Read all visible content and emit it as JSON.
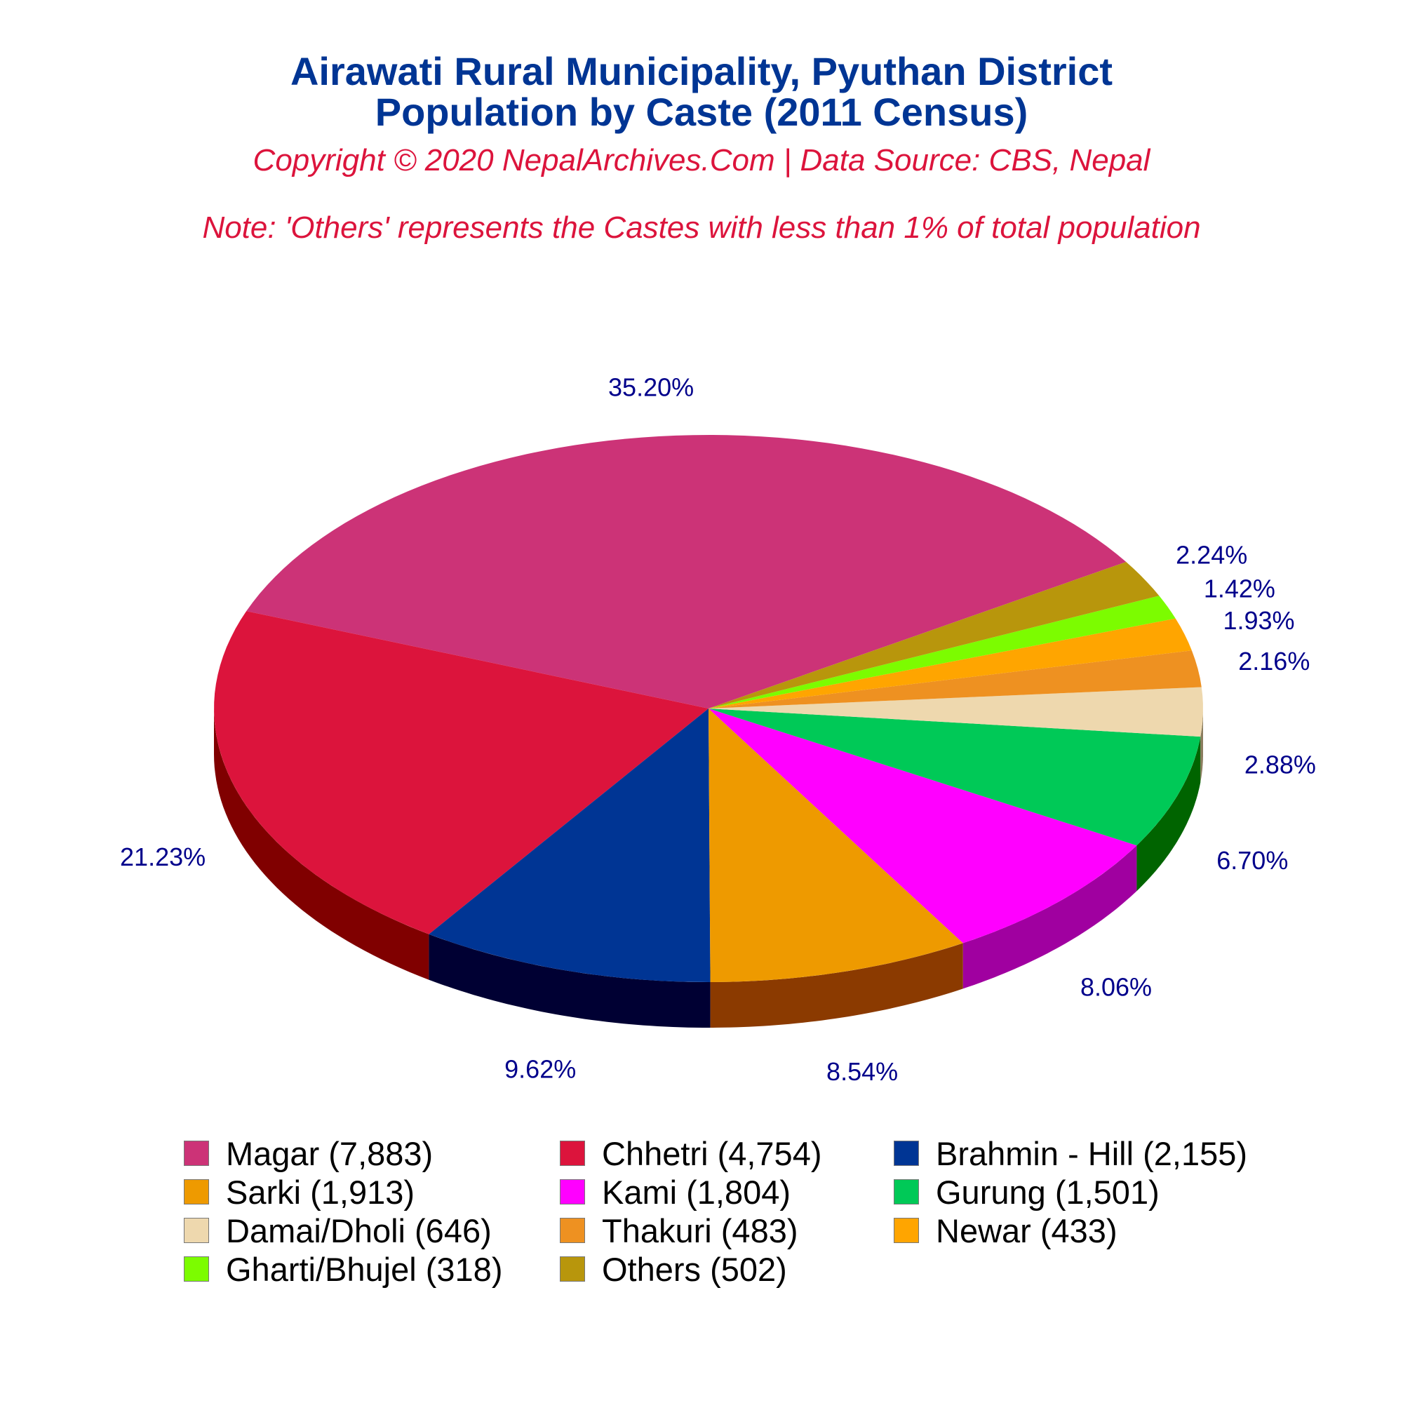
{
  "header": {
    "title_line1": "Airawati Rural Municipality, Pyuthan District",
    "title_line2": "Population by Caste (2011 Census)",
    "copyright": "Copyright © 2020 NepalArchives.Com | Data Source: CBS, Nepal",
    "note": "Note: 'Others' represents the Castes with less than 1% of total population"
  },
  "chart_data": {
    "type": "pie",
    "style": "3d",
    "categories": [
      "Magar",
      "Chhetri",
      "Brahmin - Hill",
      "Sarki",
      "Kami",
      "Gurung",
      "Damai/Dholi",
      "Thakuri",
      "Newar",
      "Gharti/Bhujel",
      "Others"
    ],
    "values": [
      7883,
      4754,
      2155,
      1913,
      1804,
      1501,
      646,
      483,
      433,
      318,
      502
    ],
    "percent_labels": [
      "35.20%",
      "21.23%",
      "9.62%",
      "8.54%",
      "8.06%",
      "6.70%",
      "2.88%",
      "2.16%",
      "1.93%",
      "1.42%",
      "2.24%"
    ],
    "legend_labels": [
      "Magar (7,883)",
      "Chhetri (4,754)",
      "Brahmin - Hill (2,155)",
      "Sarki (1,913)",
      "Kami (1,804)",
      "Gurung (1,501)",
      "Damai/Dholi (646)",
      "Thakuri (483)",
      "Newar (433)",
      "Gharti/Bhujel (318)",
      "Others (502)"
    ],
    "colors": [
      "#cc3377",
      "#dc143c",
      "#003594",
      "#ee9a00",
      "#ff00ff",
      "#00c957",
      "#eed8ae",
      "#ee9121",
      "#ffa500",
      "#7cfc00",
      "#b8960c"
    ],
    "side_colors": [
      "#8b1a4a",
      "#800000",
      "#000033",
      "#8b3a00",
      "#a000a0",
      "#006400",
      "#8b7d5e",
      "#8b4500",
      "#8b5a00",
      "#4a9600",
      "#6b5500"
    ],
    "legend_position": "bottom",
    "label_color": "#00008b"
  }
}
